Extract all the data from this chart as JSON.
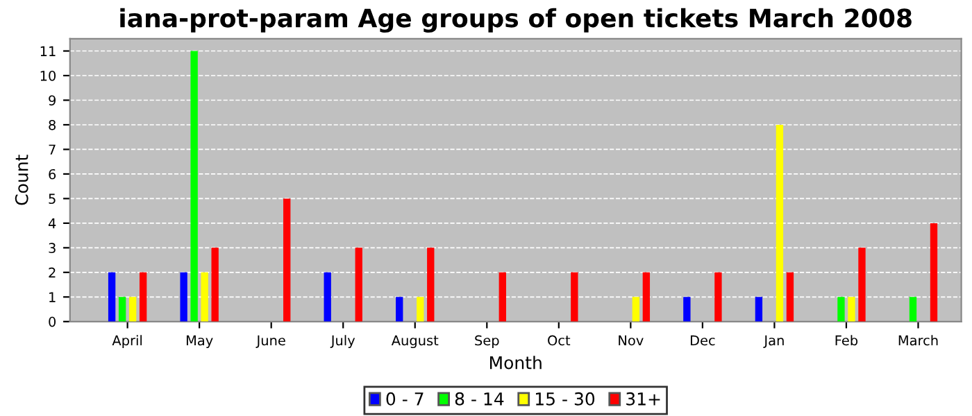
{
  "chart_data": {
    "type": "bar",
    "title": "iana-prot-param Age groups of open tickets March 2008",
    "xlabel": "Month",
    "ylabel": "Count",
    "categories": [
      "April",
      "May",
      "June",
      "July",
      "August",
      "Sep",
      "Oct",
      "Nov",
      "Dec",
      "Jan",
      "Feb",
      "March"
    ],
    "series": [
      {
        "name": "0 - 7",
        "color": "#0000ff",
        "values": [
          2,
          2,
          0,
          2,
          1,
          0,
          0,
          0,
          1,
          1,
          0,
          0
        ]
      },
      {
        "name": "8 - 14",
        "color": "#00ff00",
        "values": [
          1,
          11,
          0,
          0,
          0,
          0,
          0,
          0,
          0,
          0,
          1,
          1
        ]
      },
      {
        "name": "15 - 30",
        "color": "#ffff00",
        "values": [
          1,
          2,
          0,
          0,
          1,
          0,
          0,
          1,
          0,
          8,
          1,
          0
        ]
      },
      {
        "name": "31+",
        "color": "#ff0000",
        "values": [
          2,
          3,
          5,
          3,
          3,
          2,
          2,
          2,
          2,
          2,
          3,
          4
        ]
      }
    ],
    "ylim": [
      0,
      11.5
    ],
    "yticks": [
      0,
      1,
      2,
      3,
      4,
      5,
      6,
      7,
      8,
      9,
      10,
      11
    ],
    "grid": "y",
    "legend": "bottom"
  }
}
